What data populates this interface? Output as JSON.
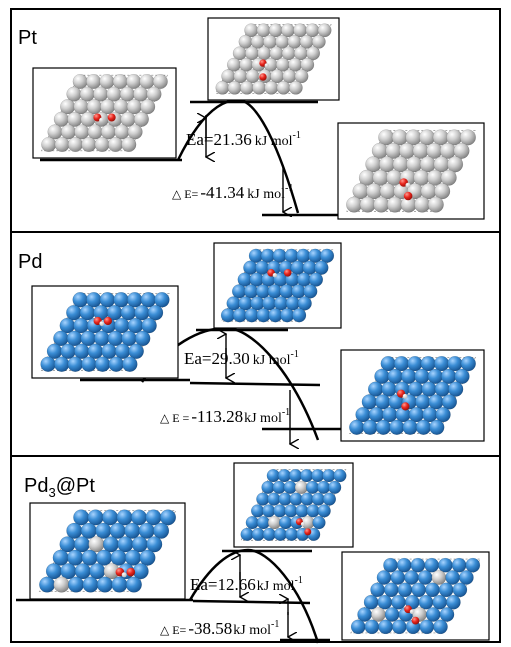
{
  "panels": [
    {
      "id": "pt",
      "title": "Pt",
      "title_sub": "",
      "title_rest": "",
      "ea_prefix": "Ea=",
      "ea_value": "21.36",
      "ea_unit": "kJ mol",
      "ea_exp": "-1",
      "de_prefix": "△ E=",
      "de_value": "-41.34",
      "de_unit": "kJ mol",
      "de_exp": "-1",
      "ea_kj_mol": 21.36,
      "dE_kj_mol": -41.34
    },
    {
      "id": "pd",
      "title": "Pd",
      "title_sub": "",
      "title_rest": "",
      "ea_prefix": "Ea=",
      "ea_value": "29.30",
      "ea_unit": "kJ mol",
      "ea_exp": "-1",
      "de_prefix": "△ E =",
      "de_value": "-113.28",
      "de_unit": "kJ mol",
      "de_exp": "-1",
      "ea_kj_mol": 29.3,
      "dE_kj_mol": -113.28
    },
    {
      "id": "pd3pt",
      "title": "Pd",
      "title_sub": "3",
      "title_rest": "@Pt",
      "ea_prefix": "Ea=",
      "ea_value": "12.66",
      "ea_unit": "kJ mol",
      "ea_exp": "-1",
      "de_prefix": "△ E=",
      "de_value": "-38.58",
      "de_unit": "kJ mol",
      "de_exp": "-1",
      "ea_kj_mol": 12.66,
      "dE_kj_mol": -38.58
    }
  ],
  "colors": {
    "pt_atom": "#c4c4c4",
    "pd_atom": "#3b8ed6",
    "oxygen": "#e8241c",
    "hydrogen": "#f2f2f2",
    "line": "#000000"
  }
}
